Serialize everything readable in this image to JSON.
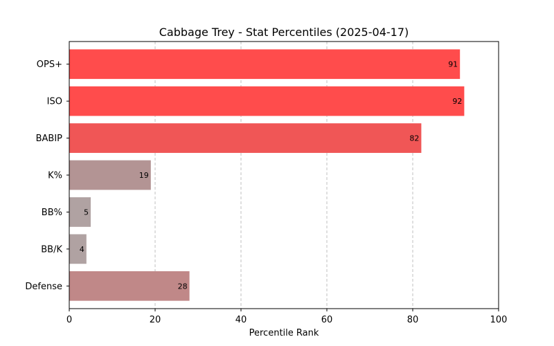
{
  "chart_data": {
    "type": "bar",
    "orientation": "horizontal",
    "title": "Cabbage Trey - Stat Percentiles (2025-04-17)",
    "xlabel": "Percentile Rank",
    "ylabel": "",
    "xlim": [
      0,
      100
    ],
    "xticks": [
      0,
      20,
      40,
      60,
      80,
      100
    ],
    "grid": "x-dashed",
    "categories": [
      "OPS+",
      "ISO",
      "BABIP",
      "K%",
      "BB%",
      "BB/K",
      "Defense"
    ],
    "values": [
      91,
      92,
      82,
      19,
      5,
      4,
      28
    ],
    "colors": [
      "#ff4c4c",
      "#ff4c4c",
      "#f05656",
      "#b39494",
      "#b0a2a2",
      "#b0a2a2",
      "#c08888"
    ]
  }
}
